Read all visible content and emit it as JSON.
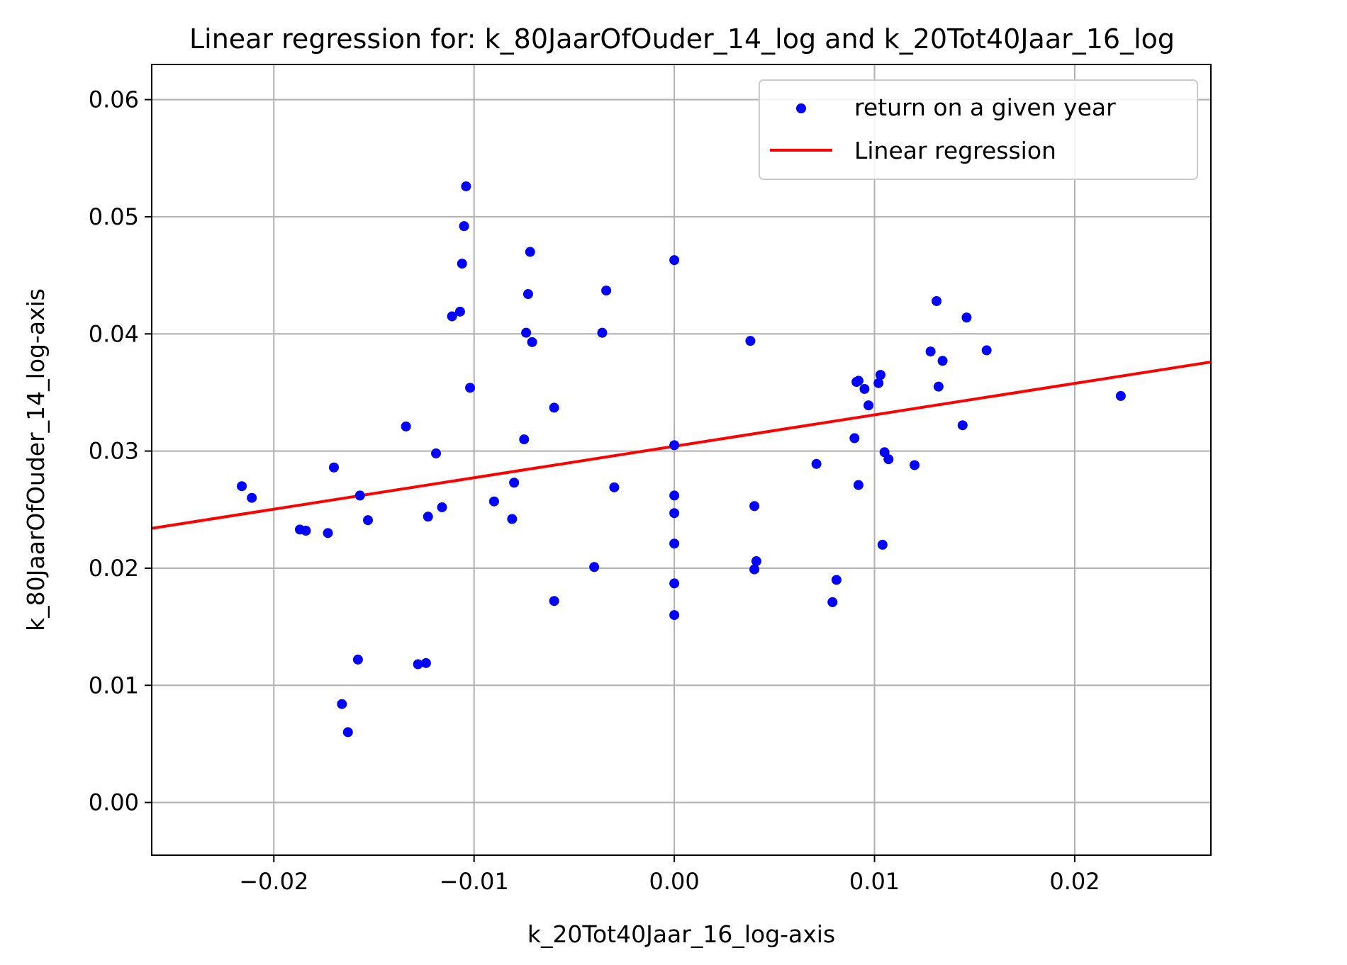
{
  "chart_data": {
    "type": "scatter",
    "title": "Linear regression for: k_80JaarOfOuder_14_log and k_20Tot40Jaar_16_log",
    "xlabel": "k_20Tot40Jaar_16_log-axis",
    "ylabel": "k_80JaarOfOuder_14_log-axis",
    "xlim": [
      -0.0261,
      0.0268
    ],
    "ylim": [
      -0.0045,
      0.063
    ],
    "xticks": [
      -0.02,
      -0.01,
      0.0,
      0.01,
      0.02
    ],
    "xtick_labels": [
      "−0.02",
      "−0.01",
      "0.00",
      "0.01",
      "0.02"
    ],
    "yticks": [
      0.0,
      0.01,
      0.02,
      0.03,
      0.04,
      0.05,
      0.06
    ],
    "ytick_labels": [
      "0.00",
      "0.01",
      "0.02",
      "0.03",
      "0.04",
      "0.05",
      "0.06"
    ],
    "grid": true,
    "legend_position": "top-right",
    "series": [
      {
        "name": "return on a given year",
        "kind": "scatter",
        "color": "#0000ff",
        "points": [
          [
            -0.0216,
            0.027
          ],
          [
            -0.0211,
            0.026
          ],
          [
            -0.0187,
            0.0233
          ],
          [
            -0.0184,
            0.0232
          ],
          [
            -0.0173,
            0.023
          ],
          [
            -0.017,
            0.0286
          ],
          [
            -0.0166,
            0.0084
          ],
          [
            -0.0163,
            0.006
          ],
          [
            -0.0158,
            0.0122
          ],
          [
            -0.0157,
            0.0262
          ],
          [
            -0.0153,
            0.0241
          ],
          [
            -0.0134,
            0.0321
          ],
          [
            -0.0128,
            0.0118
          ],
          [
            -0.0124,
            0.0119
          ],
          [
            -0.0123,
            0.0244
          ],
          [
            -0.0119,
            0.0298
          ],
          [
            -0.0116,
            0.0252
          ],
          [
            -0.0111,
            0.0415
          ],
          [
            -0.0107,
            0.0419
          ],
          [
            -0.0106,
            0.046
          ],
          [
            -0.0105,
            0.0492
          ],
          [
            -0.0104,
            0.0526
          ],
          [
            -0.0102,
            0.0354
          ],
          [
            -0.009,
            0.0257
          ],
          [
            -0.0081,
            0.0242
          ],
          [
            -0.008,
            0.0273
          ],
          [
            -0.0075,
            0.031
          ],
          [
            -0.0074,
            0.0401
          ],
          [
            -0.0073,
            0.0434
          ],
          [
            -0.0072,
            0.047
          ],
          [
            -0.0071,
            0.0393
          ],
          [
            -0.006,
            0.0337
          ],
          [
            -0.006,
            0.0172
          ],
          [
            -0.004,
            0.0201
          ],
          [
            -0.0036,
            0.0401
          ],
          [
            -0.0034,
            0.0437
          ],
          [
            -0.003,
            0.0269
          ],
          [
            0.0,
            0.0463
          ],
          [
            0.0,
            0.0305
          ],
          [
            0.0,
            0.0262
          ],
          [
            0.0,
            0.0247
          ],
          [
            0.0,
            0.0221
          ],
          [
            0.0,
            0.0187
          ],
          [
            0.0,
            0.016
          ],
          [
            0.0038,
            0.0394
          ],
          [
            0.004,
            0.0199
          ],
          [
            0.004,
            0.0253
          ],
          [
            0.0041,
            0.0206
          ],
          [
            0.0071,
            0.0289
          ],
          [
            0.0079,
            0.0171
          ],
          [
            0.0081,
            0.019
          ],
          [
            0.009,
            0.0311
          ],
          [
            0.0091,
            0.0359
          ],
          [
            0.0092,
            0.036
          ],
          [
            0.0092,
            0.0271
          ],
          [
            0.0095,
            0.0353
          ],
          [
            0.0097,
            0.0339
          ],
          [
            0.0102,
            0.0358
          ],
          [
            0.0103,
            0.0365
          ],
          [
            0.0104,
            0.022
          ],
          [
            0.0105,
            0.0299
          ],
          [
            0.0107,
            0.0293
          ],
          [
            0.012,
            0.0288
          ],
          [
            0.0128,
            0.0385
          ],
          [
            0.0131,
            0.0428
          ],
          [
            0.0132,
            0.0355
          ],
          [
            0.0134,
            0.0377
          ],
          [
            0.0144,
            0.0322
          ],
          [
            0.0146,
            0.0414
          ],
          [
            0.0156,
            0.0386
          ],
          [
            0.0223,
            0.0347
          ]
        ]
      },
      {
        "name": "Linear regression",
        "kind": "line",
        "color": "#ff0000",
        "points": [
          [
            -0.0261,
            0.0234
          ],
          [
            0.0268,
            0.0376
          ]
        ]
      }
    ]
  }
}
